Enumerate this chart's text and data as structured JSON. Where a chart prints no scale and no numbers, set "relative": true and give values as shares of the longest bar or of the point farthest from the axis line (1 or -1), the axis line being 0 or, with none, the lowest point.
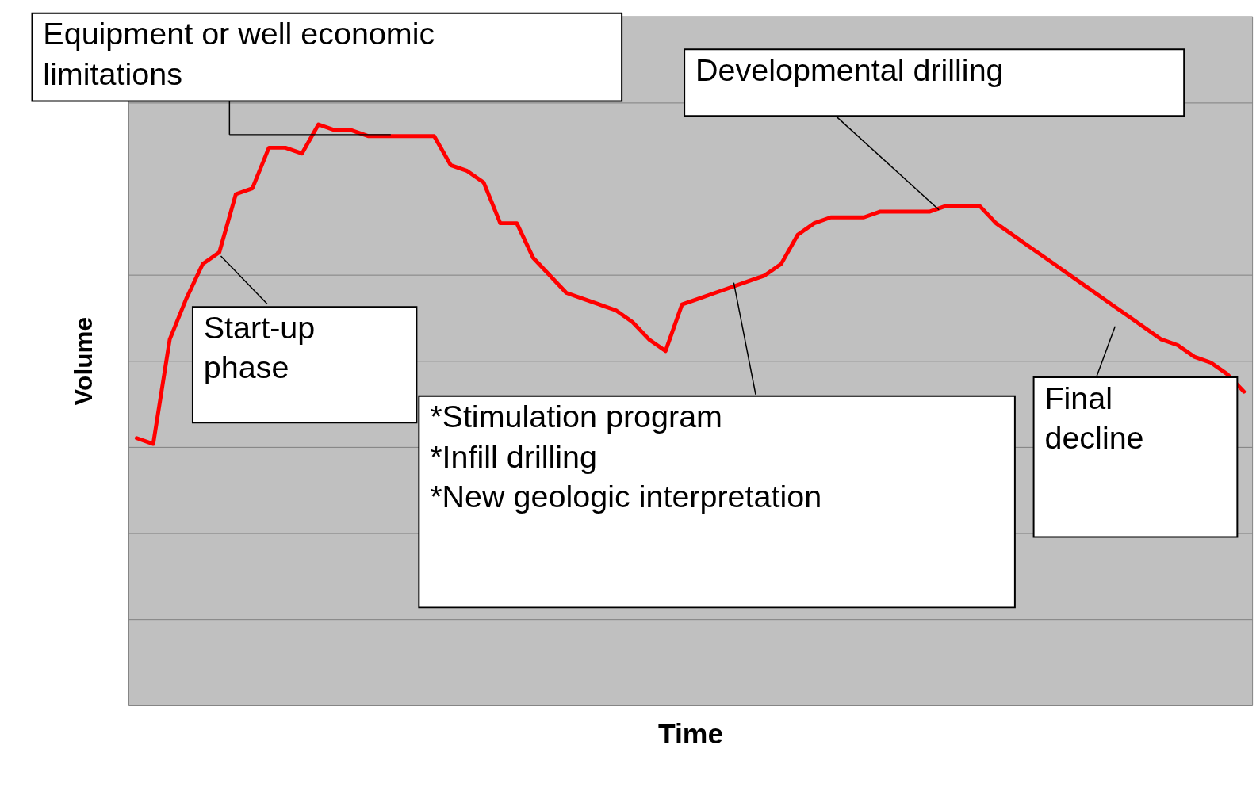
{
  "chart_data": {
    "type": "line",
    "relative": true,
    "xlabel": "Time",
    "ylabel": "Volume",
    "grid": "y",
    "tick_labels": false,
    "marker": "none",
    "line_style": "solid",
    "categories": [
      null,
      null,
      null,
      null,
      null,
      null,
      null,
      null,
      null,
      null,
      null,
      null,
      null,
      null,
      null,
      null,
      null,
      null,
      null,
      null,
      null,
      null,
      null,
      null,
      null,
      null,
      null,
      null,
      null,
      null,
      null,
      null,
      null,
      null,
      null,
      null,
      null,
      null,
      null,
      null,
      null,
      null,
      null,
      null,
      null,
      null,
      null,
      null,
      null,
      null,
      null,
      null,
      null,
      null,
      null,
      null,
      null,
      null,
      null,
      null,
      null,
      null,
      null,
      null,
      null,
      null,
      null,
      null
    ],
    "series": [
      {
        "color": "#ff0000",
        "values": [
          0.46,
          0.45,
          0.63,
          0.7,
          0.76,
          0.78,
          0.88,
          0.89,
          0.96,
          0.96,
          0.95,
          1.0,
          0.99,
          0.99,
          0.98,
          0.98,
          0.98,
          0.98,
          0.98,
          0.93,
          0.92,
          0.9,
          0.83,
          0.83,
          0.77,
          0.74,
          0.71,
          0.7,
          0.69,
          0.68,
          0.66,
          0.63,
          0.61,
          0.69,
          0.7,
          0.71,
          0.72,
          0.73,
          0.74,
          0.76,
          0.81,
          0.83,
          0.84,
          0.84,
          0.84,
          0.85,
          0.85,
          0.85,
          0.85,
          0.86,
          0.86,
          0.86,
          0.83,
          0.81,
          0.79,
          0.77,
          0.75,
          0.73,
          0.71,
          0.69,
          0.67,
          0.65,
          0.63,
          0.62,
          0.6,
          0.59,
          0.57,
          0.54
        ]
      }
    ],
    "annotations": [
      "Equipment or well economic\nlimitations",
      "Developmental drilling",
      "Start-up\nphase",
      "*Stimulation program\n*Infill drilling\n*New geologic interpretation",
      "Final\ndecline"
    ]
  }
}
